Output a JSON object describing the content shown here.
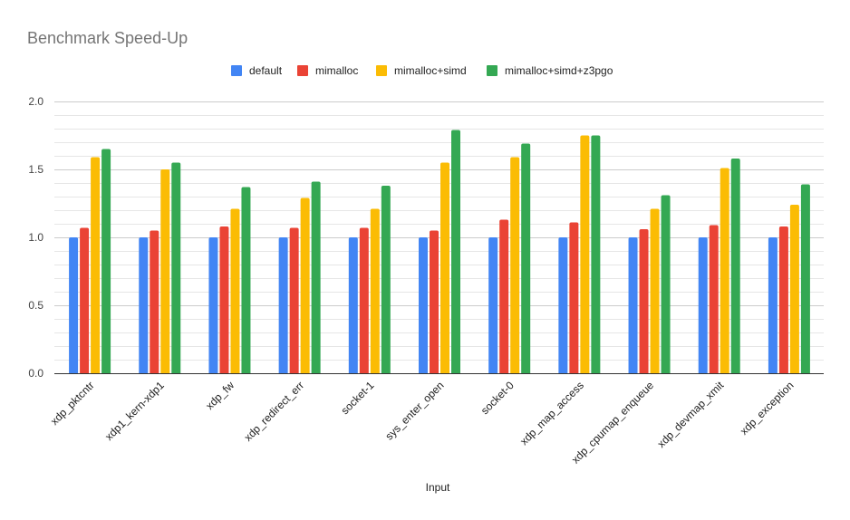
{
  "chart_data": {
    "type": "bar",
    "title": "Benchmark Speed-Up",
    "xlabel": "Input",
    "ylabel": "",
    "ylim": [
      0,
      2.0
    ],
    "yticks": [
      "0.0",
      "0.5",
      "1.0",
      "1.5",
      "2.0"
    ],
    "ytick_values": [
      0,
      0.5,
      1.0,
      1.5,
      2.0
    ],
    "minor_grid_step": 0.1,
    "grid": true,
    "legend_position": "top-center",
    "categories": [
      "xdp_pktcntr",
      "xdp1_kern-xdp1",
      "xdp_fw",
      "xdp_redirect_err",
      "socket-1",
      "sys_enter_open",
      "socket-0",
      "xdp_map_access",
      "xdp_cpumap_enqueue",
      "xdp_devmap_xmit",
      "xdp_exception"
    ],
    "series": [
      {
        "name": "default",
        "color": "#4285f4",
        "values": [
          1.0,
          1.0,
          1.0,
          1.0,
          1.0,
          1.0,
          1.0,
          1.0,
          1.0,
          1.0,
          1.0
        ]
      },
      {
        "name": "mimalloc",
        "color": "#ea4335",
        "values": [
          1.07,
          1.05,
          1.08,
          1.07,
          1.07,
          1.05,
          1.13,
          1.11,
          1.06,
          1.09,
          1.08
        ]
      },
      {
        "name": "mimalloc+simd",
        "color": "#fbbc04",
        "values": [
          1.59,
          1.5,
          1.21,
          1.29,
          1.21,
          1.55,
          1.59,
          1.75,
          1.21,
          1.51,
          1.24
        ]
      },
      {
        "name": "mimalloc+simd+z3pgo",
        "color": "#34a853",
        "values": [
          1.65,
          1.55,
          1.37,
          1.41,
          1.38,
          1.79,
          1.69,
          1.75,
          1.31,
          1.58,
          1.39
        ]
      }
    ]
  }
}
